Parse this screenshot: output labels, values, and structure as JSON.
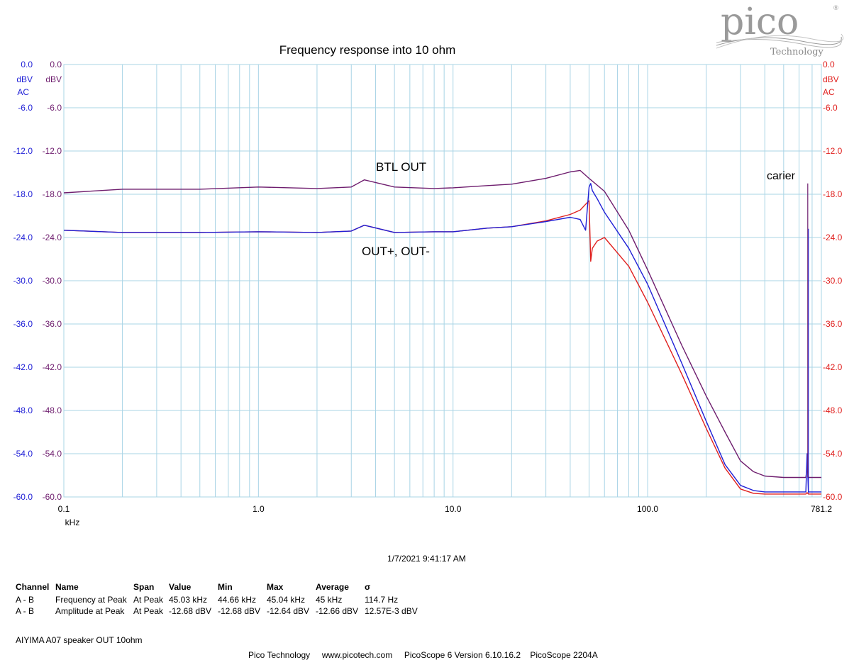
{
  "chart_data": {
    "type": "line",
    "title": "Frequency response into 10 ohm",
    "x_scale": "log",
    "x_unit": "kHz",
    "xlim": [
      0.1,
      781.2
    ],
    "x_tick_labels": [
      "0.1",
      "1.0",
      "10.0",
      "100.0",
      "781.2"
    ],
    "ylim": [
      -60.0,
      0.0
    ],
    "y_tick_labels": [
      "0.0",
      "-6.0",
      "-12.0",
      "-18.0",
      "-24.0",
      "-30.0",
      "-36.0",
      "-42.0",
      "-48.0",
      "-54.0",
      "-60.0"
    ],
    "y_unit_left_outer": "dBV",
    "y_coupling_left": "AC",
    "y_unit_left_inner": "dBV",
    "y_unit_right": "dBV",
    "y_coupling_right": "AC",
    "colors": {
      "outer_axis": "#1f1fd6",
      "inner_axis": "#6e1d6e",
      "right_axis": "#e0201e",
      "grid": "#a9d4e6"
    },
    "annotations": [
      "BTL OUT",
      "OUT+, OUT-",
      "carier"
    ],
    "series": [
      {
        "color": "#6e1d6e",
        "x": [
          0.1,
          0.2,
          0.5,
          1,
          2,
          3,
          3.5,
          5,
          8,
          10,
          15,
          20,
          30,
          40,
          45,
          50,
          60,
          80,
          100,
          150,
          200,
          250,
          300,
          350,
          400,
          500,
          600,
          650,
          660,
          670,
          700,
          781.2
        ],
        "y": [
          -17.8,
          -17.3,
          -17.3,
          -17.0,
          -17.2,
          -17.0,
          -16.0,
          -17.0,
          -17.2,
          -17.1,
          -16.8,
          -16.6,
          -15.8,
          -14.9,
          -14.7,
          -15.8,
          -17.6,
          -23.0,
          -28.5,
          -39.0,
          -46.0,
          -51.0,
          -55.0,
          -56.5,
          -57.1,
          -57.3,
          -57.3,
          -57.3,
          -56.0,
          -57.3,
          -57.3,
          -57.3
        ]
      },
      {
        "color": "#e0201e",
        "x": [
          0.1,
          0.2,
          0.5,
          1,
          2,
          3,
          3.5,
          5,
          8,
          10,
          15,
          20,
          30,
          40,
          45,
          48,
          50,
          51,
          52,
          55,
          60,
          80,
          100,
          150,
          200,
          250,
          300,
          350,
          400,
          500,
          600,
          650,
          660,
          670,
          700,
          781.2
        ],
        "y": [
          -23.0,
          -23.3,
          -23.3,
          -23.2,
          -23.3,
          -23.1,
          -22.3,
          -23.3,
          -23.2,
          -23.2,
          -22.7,
          -22.5,
          -21.7,
          -20.8,
          -20.2,
          -19.4,
          -18.9,
          -27.3,
          -25.5,
          -24.5,
          -24.0,
          -28.0,
          -33.0,
          -43.0,
          -50.5,
          -56.0,
          -58.9,
          -59.5,
          -59.6,
          -59.6,
          -59.6,
          -59.6,
          -59.4,
          -59.6,
          -59.6,
          -59.6
        ]
      },
      {
        "color": "#1f1fd6",
        "x": [
          0.1,
          0.2,
          0.5,
          1,
          2,
          3,
          3.5,
          5,
          8,
          10,
          15,
          20,
          30,
          40,
          45,
          48,
          50,
          51,
          52,
          55,
          60,
          80,
          100,
          150,
          200,
          250,
          300,
          350,
          400,
          500,
          600,
          650,
          660,
          670,
          700,
          781.2
        ],
        "y": [
          -23.0,
          -23.3,
          -23.3,
          -23.2,
          -23.3,
          -23.1,
          -22.3,
          -23.3,
          -23.2,
          -23.2,
          -22.7,
          -22.5,
          -21.8,
          -21.2,
          -21.5,
          -23.0,
          -17.0,
          -16.5,
          -17.5,
          -18.6,
          -20.5,
          -25.5,
          -30.5,
          -41.5,
          -49.5,
          -55.5,
          -58.4,
          -59.1,
          -59.3,
          -59.3,
          -59.3,
          -59.3,
          -54.0,
          -59.3,
          -59.3,
          -59.3
        ]
      }
    ],
    "carrier_spike": {
      "x": 665,
      "y_purple": -16.5,
      "y_blue": -22.8
    }
  },
  "timestamp": "1/7/2021 9:41:17 AM",
  "measurements": {
    "headers": [
      "Channel",
      "Name",
      "Span",
      "Value",
      "Min",
      "Max",
      "Average",
      "σ"
    ],
    "rows": [
      [
        "A - B",
        "Frequency at Peak",
        "At Peak",
        "45.03 kHz",
        "44.66 kHz",
        "45.04 kHz",
        "45 kHz",
        "114.7 Hz"
      ],
      [
        "A - B",
        "Amplitude at Peak",
        "At Peak",
        "-12.68 dBV",
        "-12.68 dBV",
        "-12.64 dBV",
        "-12.66 dBV",
        "12.57E-3 dBV"
      ]
    ]
  },
  "notes": "AIYIMA A07 speaker OUT 10ohm",
  "footer": "Pico Technology     www.picotech.com     PicoScope 6 Version 6.10.16.2    PicoScope 2204A",
  "logo": {
    "name": "pico",
    "tagline": "Technology",
    "mark": "®"
  }
}
